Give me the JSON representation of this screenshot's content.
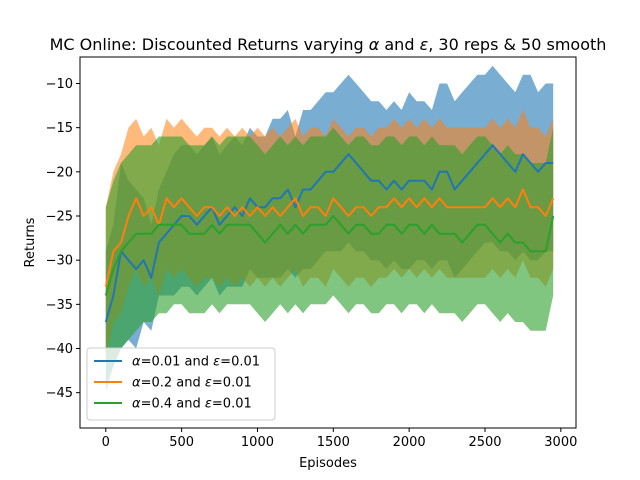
{
  "chart_data": {
    "type": "line",
    "title_parts": [
      {
        "text": "MC Online: Discounted Returns varying ",
        "italic": false
      },
      {
        "text": "α",
        "italic": true
      },
      {
        "text": " and ",
        "italic": false
      },
      {
        "text": "ε",
        "italic": true
      },
      {
        "text": ", 30 reps & 50 smooth",
        "italic": false
      }
    ],
    "xlabel": "Episodes",
    "ylabel": "Returns",
    "xlim": [
      -170,
      3100
    ],
    "ylim": [
      -49,
      -7
    ],
    "x_ticks": [
      0,
      500,
      1000,
      1500,
      2000,
      2500,
      3000
    ],
    "y_ticks": [
      -45,
      -40,
      -35,
      -30,
      -25,
      -20,
      -15,
      -10
    ],
    "legend_position": "lower-left",
    "series": [
      {
        "name_parts": [
          {
            "text": "α",
            "italic": true
          },
          {
            "text": "=0.01 and ",
            "italic": false
          },
          {
            "text": "ε",
            "italic": true
          },
          {
            "text": "=0.01",
            "italic": false
          }
        ],
        "color": "#1f77b4",
        "band_opacity": 0.6,
        "x": [
          0,
          50,
          100,
          150,
          200,
          250,
          300,
          350,
          400,
          450,
          500,
          550,
          600,
          650,
          700,
          750,
          800,
          850,
          900,
          950,
          1000,
          1050,
          1100,
          1150,
          1200,
          1250,
          1300,
          1350,
          1400,
          1450,
          1500,
          1550,
          1600,
          1650,
          1700,
          1750,
          1800,
          1850,
          1900,
          1950,
          2000,
          2050,
          2100,
          2150,
          2200,
          2250,
          2300,
          2350,
          2400,
          2450,
          2500,
          2550,
          2600,
          2650,
          2700,
          2750,
          2800,
          2850,
          2900,
          2950
        ],
        "y": [
          -37,
          -34,
          -29,
          -30,
          -31,
          -30,
          -32,
          -28,
          -27,
          -26,
          -25,
          -25,
          -26,
          -25,
          -24,
          -26,
          -25,
          -24,
          -25,
          -23,
          -24,
          -24,
          -23,
          -23,
          -22,
          -24,
          -22,
          -22,
          -21,
          -20,
          -20,
          -19,
          -18,
          -19,
          -20,
          -21,
          -21,
          -22,
          -21,
          -22,
          -21,
          -21,
          -21,
          -22,
          -20,
          -20,
          -22,
          -21,
          -20,
          -19,
          -18,
          -17,
          -18,
          -19,
          -20,
          -18,
          -19,
          -20,
          -19,
          -19
        ],
        "lower": [
          -45,
          -42,
          -40,
          -39,
          -40,
          -37,
          -38,
          -34,
          -34,
          -34,
          -33,
          -33,
          -34,
          -33,
          -32,
          -34,
          -33,
          -33,
          -33,
          -31,
          -32,
          -32,
          -32,
          -32,
          -31,
          -32,
          -31,
          -31,
          -30,
          -29,
          -29,
          -29,
          -28,
          -29,
          -29,
          -30,
          -30,
          -31,
          -30,
          -31,
          -31,
          -30,
          -30,
          -31,
          -30,
          -30,
          -32,
          -31,
          -30,
          -29,
          -28,
          -28,
          -29,
          -29,
          -30,
          -29,
          -30,
          -30,
          -29,
          -29
        ],
        "upper": [
          -29,
          -26,
          -19,
          -21,
          -22,
          -23,
          -26,
          -22,
          -20,
          -18,
          -17,
          -17,
          -18,
          -17,
          -16,
          -18,
          -17,
          -16,
          -17,
          -15,
          -16,
          -16,
          -14,
          -14,
          -13,
          -16,
          -13,
          -13,
          -12,
          -11,
          -11,
          -10,
          -9,
          -10,
          -11,
          -12,
          -12,
          -13,
          -12,
          -13,
          -11,
          -12,
          -12,
          -13,
          -10,
          -10,
          -12,
          -11,
          -10,
          -9,
          -9,
          -8,
          -9,
          -10,
          -11,
          -9,
          -9,
          -11,
          -10,
          -10
        ]
      },
      {
        "name_parts": [
          {
            "text": "α",
            "italic": true
          },
          {
            "text": "=0.2 and ",
            "italic": false
          },
          {
            "text": "ε",
            "italic": true
          },
          {
            "text": "=0.01",
            "italic": false
          }
        ],
        "color": "#ff7f0e",
        "band_opacity": 0.55,
        "x": [
          0,
          50,
          100,
          150,
          200,
          250,
          300,
          350,
          400,
          450,
          500,
          550,
          600,
          650,
          700,
          750,
          800,
          850,
          900,
          950,
          1000,
          1050,
          1100,
          1150,
          1200,
          1250,
          1300,
          1350,
          1400,
          1450,
          1500,
          1550,
          1600,
          1650,
          1700,
          1750,
          1800,
          1850,
          1900,
          1950,
          2000,
          2050,
          2100,
          2150,
          2200,
          2250,
          2300,
          2350,
          2400,
          2450,
          2500,
          2550,
          2600,
          2650,
          2700,
          2750,
          2800,
          2850,
          2900,
          2950
        ],
        "y": [
          -33,
          -29,
          -28,
          -25,
          -23,
          -25,
          -24,
          -26,
          -23,
          -24,
          -23,
          -24,
          -25,
          -24,
          -24,
          -25,
          -24,
          -25,
          -24,
          -25,
          -24,
          -25,
          -24,
          -25,
          -24,
          -23,
          -25,
          -24,
          -24,
          -25,
          -23,
          -24,
          -25,
          -24,
          -24,
          -25,
          -24,
          -24,
          -23,
          -24,
          -23,
          -24,
          -23,
          -24,
          -23,
          -24,
          -24,
          -24,
          -24,
          -24,
          -24,
          -23,
          -24,
          -23,
          -24,
          -22,
          -24,
          -24,
          -25,
          -23
        ],
        "lower": [
          -41,
          -37,
          -36,
          -33,
          -31,
          -33,
          -32,
          -34,
          -31,
          -32,
          -31,
          -32,
          -33,
          -32,
          -32,
          -33,
          -32,
          -33,
          -32,
          -33,
          -32,
          -33,
          -32,
          -33,
          -32,
          -31,
          -33,
          -32,
          -32,
          -33,
          -31,
          -32,
          -33,
          -32,
          -32,
          -33,
          -32,
          -32,
          -31,
          -32,
          -31,
          -32,
          -31,
          -32,
          -31,
          -32,
          -32,
          -32,
          -32,
          -32,
          -32,
          -31,
          -32,
          -31,
          -32,
          -30,
          -32,
          -32,
          -33,
          -31
        ],
        "upper": [
          -24,
          -20,
          -18,
          -15,
          -14,
          -16,
          -15,
          -17,
          -14,
          -15,
          -14,
          -15,
          -16,
          -15,
          -15,
          -16,
          -15,
          -16,
          -15,
          -16,
          -15,
          -16,
          -15,
          -16,
          -15,
          -14,
          -16,
          -15,
          -15,
          -16,
          -14,
          -15,
          -16,
          -15,
          -15,
          -16,
          -15,
          -15,
          -14,
          -15,
          -14,
          -15,
          -14,
          -15,
          -14,
          -15,
          -15,
          -15,
          -15,
          -15,
          -15,
          -14,
          -15,
          -14,
          -15,
          -13,
          -15,
          -15,
          -16,
          -14
        ]
      },
      {
        "name_parts": [
          {
            "text": "α",
            "italic": true
          },
          {
            "text": "=0.4 and ",
            "italic": false
          },
          {
            "text": "ε",
            "italic": true
          },
          {
            "text": "=0.01",
            "italic": false
          }
        ],
        "color": "#2ca02c",
        "band_opacity": 0.6,
        "x": [
          0,
          50,
          100,
          150,
          200,
          250,
          300,
          350,
          400,
          450,
          500,
          550,
          600,
          650,
          700,
          750,
          800,
          850,
          900,
          950,
          1000,
          1050,
          1100,
          1150,
          1200,
          1250,
          1300,
          1350,
          1400,
          1450,
          1500,
          1550,
          1600,
          1650,
          1700,
          1750,
          1800,
          1850,
          1900,
          1950,
          2000,
          2050,
          2100,
          2150,
          2200,
          2250,
          2300,
          2350,
          2400,
          2450,
          2500,
          2550,
          2600,
          2650,
          2700,
          2750,
          2800,
          2850,
          2900,
          2950
        ],
        "y": [
          -34,
          -31,
          -29,
          -28,
          -27,
          -27,
          -27,
          -26,
          -26,
          -26,
          -26,
          -27,
          -27,
          -27,
          -26,
          -27,
          -26,
          -26,
          -26,
          -26,
          -27,
          -28,
          -27,
          -26,
          -27,
          -26,
          -27,
          -26,
          -26,
          -26,
          -25,
          -26,
          -27,
          -26,
          -26,
          -27,
          -27,
          -26,
          -26,
          -27,
          -26,
          -26,
          -27,
          -26,
          -27,
          -27,
          -27,
          -28,
          -27,
          -26,
          -26,
          -27,
          -28,
          -27,
          -28,
          -28,
          -29,
          -29,
          -29,
          -25
        ],
        "lower": [
          -44,
          -42,
          -40,
          -39,
          -38,
          -37,
          -37,
          -36,
          -36,
          -35,
          -35,
          -36,
          -36,
          -36,
          -35,
          -36,
          -35,
          -35,
          -35,
          -35,
          -36,
          -37,
          -36,
          -35,
          -36,
          -35,
          -36,
          -35,
          -35,
          -35,
          -34,
          -35,
          -36,
          -35,
          -35,
          -36,
          -36,
          -35,
          -35,
          -36,
          -35,
          -35,
          -36,
          -35,
          -36,
          -36,
          -36,
          -37,
          -36,
          -35,
          -35,
          -36,
          -37,
          -36,
          -37,
          -37,
          -38,
          -38,
          -38,
          -34
        ],
        "upper": [
          -24,
          -21,
          -19,
          -18,
          -17,
          -17,
          -17,
          -16,
          -16,
          -16,
          -16,
          -17,
          -17,
          -17,
          -16,
          -17,
          -16,
          -16,
          -16,
          -16,
          -17,
          -18,
          -17,
          -16,
          -17,
          -16,
          -17,
          -16,
          -16,
          -16,
          -15,
          -16,
          -17,
          -16,
          -16,
          -17,
          -17,
          -16,
          -16,
          -17,
          -16,
          -16,
          -17,
          -16,
          -17,
          -17,
          -17,
          -18,
          -17,
          -16,
          -16,
          -17,
          -18,
          -17,
          -18,
          -18,
          -19,
          -19,
          -19,
          -15
        ]
      }
    ]
  }
}
